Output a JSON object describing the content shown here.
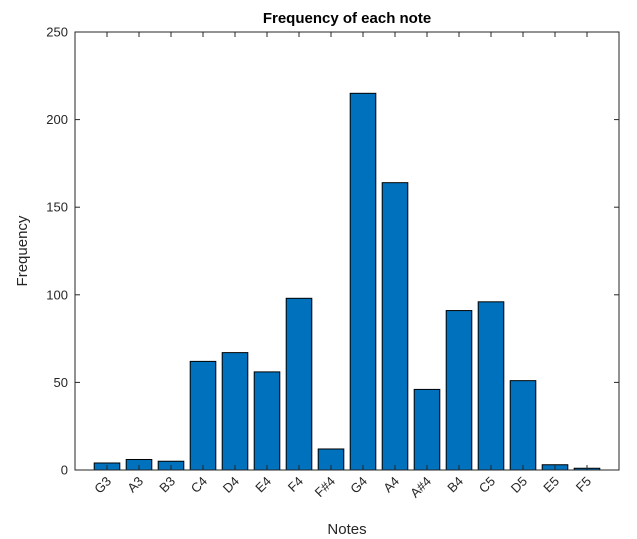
{
  "chart_data": {
    "type": "bar",
    "title": "Frequency of each note",
    "xlabel": "Notes",
    "ylabel": "Frequency",
    "categories": [
      "G3",
      "A3",
      "B3",
      "C4",
      "D4",
      "E4",
      "F4",
      "F#4",
      "G4",
      "A4",
      "A#4",
      "B4",
      "C5",
      "D5",
      "E5",
      "F5"
    ],
    "values": [
      4,
      6,
      5,
      62,
      67,
      56,
      98,
      12,
      215,
      164,
      46,
      91,
      96,
      51,
      3,
      1
    ],
    "ylim": [
      0,
      250
    ],
    "yticks": [
      0,
      50,
      100,
      150,
      200,
      250
    ],
    "grid": false,
    "bar_color": "#0072BD",
    "edge_color": "#000000"
  }
}
